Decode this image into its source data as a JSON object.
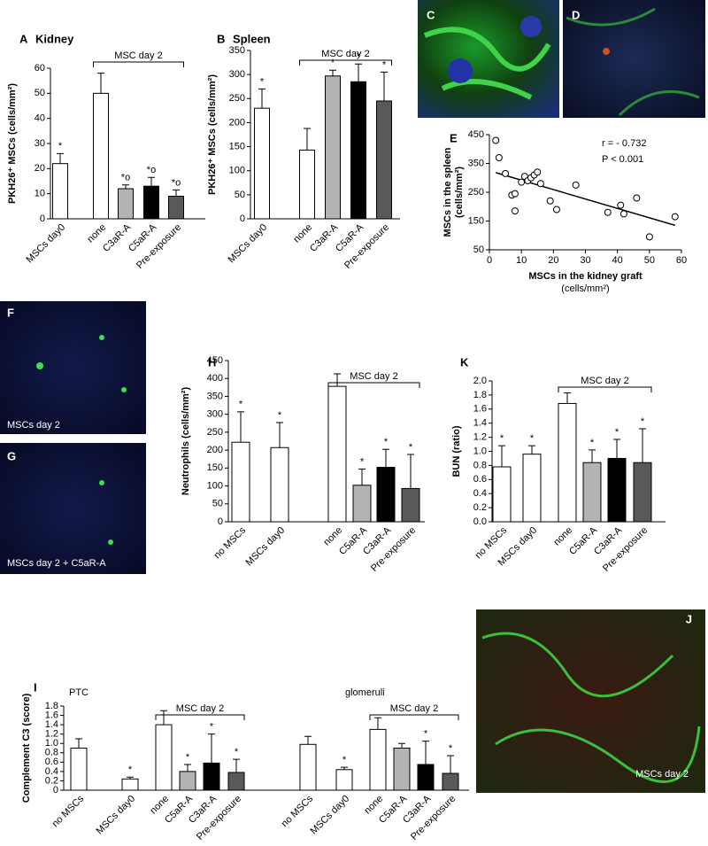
{
  "chart_data": [
    {
      "type": "bar",
      "label": "A",
      "title": "Kidney",
      "ylabel": "PKH26⁺ MSCs (cells/mm²)",
      "categories": [
        "MSCs day0",
        "none",
        "C3aR-A",
        "C5aR-A",
        "Pre-exposure"
      ],
      "values": [
        22,
        50,
        12,
        13,
        9
      ],
      "errors": [
        4,
        8,
        1.5,
        3.5,
        2.5
      ],
      "colors": [
        "#ffffff",
        "#ffffff",
        "#b3b3b3",
        "#000000",
        "#595959"
      ],
      "significance": [
        "*",
        null,
        "*o",
        "*o",
        "*o"
      ],
      "brackets": [
        {
          "text": "MSC day 2",
          "from": 1,
          "to": 4
        }
      ],
      "ylim": [
        0,
        60
      ],
      "yticks": [
        0,
        10,
        20,
        30,
        40,
        50,
        60
      ]
    },
    {
      "type": "bar",
      "label": "B",
      "title": "Spleen",
      "ylabel": "PKH26⁺ MSCs (cells/mm²)",
      "categories": [
        "MSCs day0",
        "none",
        "C3aR-A",
        "C5aR-A",
        "Pre-exposure"
      ],
      "values": [
        230,
        143,
        297,
        285,
        245
      ],
      "errors": [
        40,
        45,
        12,
        37,
        60
      ],
      "colors": [
        "#ffffff",
        "#ffffff",
        "#b3b3b3",
        "#000000",
        "#595959"
      ],
      "significance": [
        "*",
        null,
        "*",
        "*",
        "*"
      ],
      "brackets": [
        {
          "text": "MSC day 2",
          "from": 1,
          "to": 4
        }
      ],
      "ylim": [
        0,
        350
      ],
      "yticks": [
        0,
        50,
        100,
        150,
        200,
        250,
        300,
        350
      ]
    },
    {
      "type": "scatter",
      "label": "E",
      "ylabel": [
        "MSCs in the spleen",
        "(cells/mm²)"
      ],
      "xlabel": [
        "MSCs in the kidney graft",
        "(cells/mm²)"
      ],
      "x": [
        2,
        3,
        5,
        7,
        8,
        8,
        10,
        11,
        12,
        13,
        14,
        15,
        16,
        19,
        21,
        27,
        37,
        41,
        42,
        46,
        50,
        58
      ],
      "y": [
        430,
        370,
        315,
        240,
        185,
        245,
        285,
        305,
        290,
        300,
        310,
        320,
        280,
        220,
        190,
        275,
        180,
        205,
        175,
        230,
        95,
        165
      ],
      "color": "#ffffff",
      "fit": {
        "x": [
          2,
          58
        ],
        "y": [
          318,
          135
        ]
      },
      "annotations": [
        "r = - 0.732",
        "P <  0.001"
      ],
      "xlim": [
        0,
        60
      ],
      "ylim": [
        50,
        450
      ],
      "xticks": [
        0,
        10,
        20,
        30,
        40,
        50,
        60
      ],
      "yticks": [
        50,
        150,
        250,
        350,
        450
      ]
    },
    {
      "type": "bar",
      "label": "H",
      "ylabel": "Neutrophils (cells/mm²)",
      "categories": [
        "no MSCs",
        "MSCs day0",
        "none",
        "C5aR-A",
        "C3aR-A",
        "Pre-exposure"
      ],
      "values": [
        222,
        207,
        378,
        102,
        152,
        93
      ],
      "errors": [
        85,
        70,
        35,
        45,
        50,
        95
      ],
      "colors": [
        "#ffffff",
        "#ffffff",
        "#ffffff",
        "#b3b3b3",
        "#000000",
        "#595959"
      ],
      "significance": [
        "*",
        "*",
        null,
        "*",
        "*",
        "*"
      ],
      "brackets": [
        {
          "text": "MSC day 2",
          "from": 2,
          "to": 5
        }
      ],
      "ylim": [
        0,
        450
      ],
      "yticks": [
        0,
        50,
        100,
        150,
        200,
        250,
        300,
        350,
        400,
        450
      ]
    },
    {
      "type": "bar",
      "label": "K",
      "ylabel": "BUN (ratio)",
      "categories": [
        "no MSCs",
        "MSCs day0",
        "none",
        "C5aR-A",
        "C3aR-A",
        "Pre-exposure"
      ],
      "values": [
        0.78,
        0.96,
        1.68,
        0.84,
        0.9,
        0.84
      ],
      "errors": [
        0.3,
        0.12,
        0.15,
        0.18,
        0.27,
        0.48
      ],
      "colors": [
        "#ffffff",
        "#ffffff",
        "#ffffff",
        "#b3b3b3",
        "#000000",
        "#595959"
      ],
      "significance": [
        "*",
        "*",
        null,
        "*",
        "*",
        "*"
      ],
      "brackets": [
        {
          "text": "MSC day 2",
          "from": 2,
          "to": 5
        }
      ],
      "ylim": [
        0,
        2
      ],
      "yticks": [
        {
          "value": 0,
          "label": "0.0"
        },
        0.2,
        0.4,
        0.6,
        0.8,
        {
          "value": 1,
          "label": "1.0"
        },
        1.2,
        1.4,
        1.6,
        1.8,
        {
          "value": 2,
          "label": "2.0"
        }
      ]
    },
    {
      "type": "bar",
      "label": "I",
      "ylabel": "Complement C3 (score)",
      "group_labels": [
        "PTC",
        "glomeruli"
      ],
      "categories": [
        "no MSCs",
        "MSCs day0",
        "none",
        "C5aR-A",
        "C3aR-A",
        "Pre-exposure",
        "no MSCs",
        "MSCs day0",
        "none",
        "C5aR-A",
        "C3aR-A",
        "Pre-exposure"
      ],
      "values": [
        0.9,
        0.24,
        1.4,
        0.4,
        0.58,
        0.38,
        0.98,
        0.44,
        1.3,
        0.9,
        0.55,
        0.36
      ],
      "errors": [
        0.2,
        0.04,
        0.3,
        0.15,
        0.62,
        0.28,
        0.17,
        0.05,
        0.25,
        0.1,
        0.5,
        0.38
      ],
      "colors": [
        "#ffffff",
        "#ffffff",
        "#ffffff",
        "#b3b3b3",
        "#000000",
        "#595959",
        "#ffffff",
        "#ffffff",
        "#ffffff",
        "#b3b3b3",
        "#000000",
        "#595959"
      ],
      "significance": [
        null,
        "*",
        null,
        "*",
        "*",
        "*",
        null,
        "*",
        null,
        null,
        "*",
        "*"
      ],
      "brackets": [
        {
          "text": "MSC day 2",
          "from": 2,
          "to": 5
        },
        {
          "text": "MSC day 2",
          "from": 8,
          "to": 11
        }
      ],
      "ylim": [
        0,
        1.8
      ],
      "yticks": [
        0,
        0.2,
        0.4,
        0.6,
        0.8,
        {
          "value": 1,
          "label": "1.0"
        },
        1.2,
        1.4,
        1.6,
        1.8
      ]
    }
  ],
  "images": [
    {
      "panel": "C"
    },
    {
      "panel": "D"
    },
    {
      "panel": "F",
      "caption": "MSCs day 2"
    },
    {
      "panel": "G",
      "caption": "MSCs day 2 + C5aR-A"
    },
    {
      "panel": "J",
      "caption": "MSCs day 2"
    }
  ]
}
